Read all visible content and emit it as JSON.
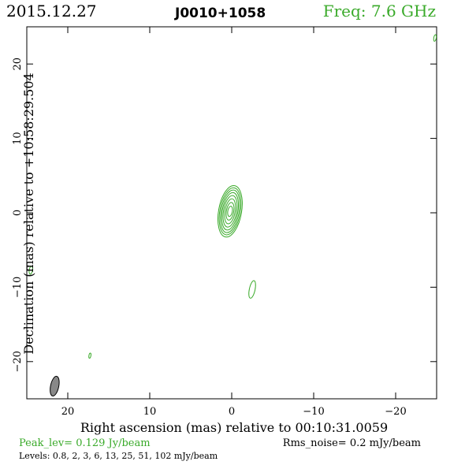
{
  "header": {
    "date": "2015.12.27",
    "source": "J0010+1058",
    "freq": "Freq: 7.6 GHz"
  },
  "footer": {
    "peak": "Peak_lev=  0.129 Jy/beam",
    "rms": "Rms_noise=   0.2 mJy/beam",
    "levels": "Levels: 0.8,   2,   3,   6,  13,  25,  51, 102 mJy/beam"
  },
  "colors": {
    "contour": "#3aaa2a",
    "freq_text": "#3aaa2a",
    "peak_text": "#3aaa2a",
    "beam_fill": "#888888",
    "axis": "#000000"
  },
  "chart_data": {
    "type": "contour",
    "xlabel": "Right ascension (mas) relative to 00:10:31.0059",
    "ylabel": "Declination (mas) relative to +10:58:29.504",
    "xlim": [
      25,
      -25
    ],
    "ylim": [
      -25,
      25
    ],
    "xticks": [
      20,
      10,
      0,
      -10,
      -20
    ],
    "yticks": [
      20,
      10,
      0,
      -10,
      -20
    ],
    "xtick_labels": [
      "20",
      "10",
      "0",
      "−10",
      "−20"
    ],
    "ytick_labels": [
      "20",
      "10",
      "0",
      "−10",
      "−20"
    ],
    "levels_mJy": [
      0.8,
      2,
      3,
      6,
      13,
      25,
      51,
      102
    ],
    "peak_Jy_per_beam": 0.129,
    "rms_mJy_per_beam": 0.2,
    "main_component": {
      "x": 0.2,
      "y": 0.2,
      "angle_deg": 10,
      "rings": [
        {
          "a": 1.4,
          "b": 3.5
        },
        {
          "a": 1.25,
          "b": 3.2
        },
        {
          "a": 1.1,
          "b": 2.9
        },
        {
          "a": 0.95,
          "b": 2.55
        },
        {
          "a": 0.8,
          "b": 2.15
        },
        {
          "a": 0.62,
          "b": 1.7
        },
        {
          "a": 0.45,
          "b": 1.2
        },
        {
          "a": 0.28,
          "b": 0.7
        }
      ]
    },
    "noise_contours": [
      {
        "x": -24.8,
        "y": 23.5,
        "a": 0.15,
        "b": 0.45,
        "angle_deg": 10
      },
      {
        "x": 24.5,
        "y": -7.7,
        "a": 0.2,
        "b": 0.55,
        "angle_deg": 10
      },
      {
        "x": -2.5,
        "y": -10.3,
        "a": 0.35,
        "b": 1.2,
        "angle_deg": 12
      },
      {
        "x": 17.3,
        "y": -19.2,
        "a": 0.12,
        "b": 0.35,
        "angle_deg": 10
      }
    ],
    "beam": {
      "x": 21.6,
      "y": -23.3,
      "a": 0.5,
      "b": 1.35,
      "angle_deg": 12
    }
  }
}
